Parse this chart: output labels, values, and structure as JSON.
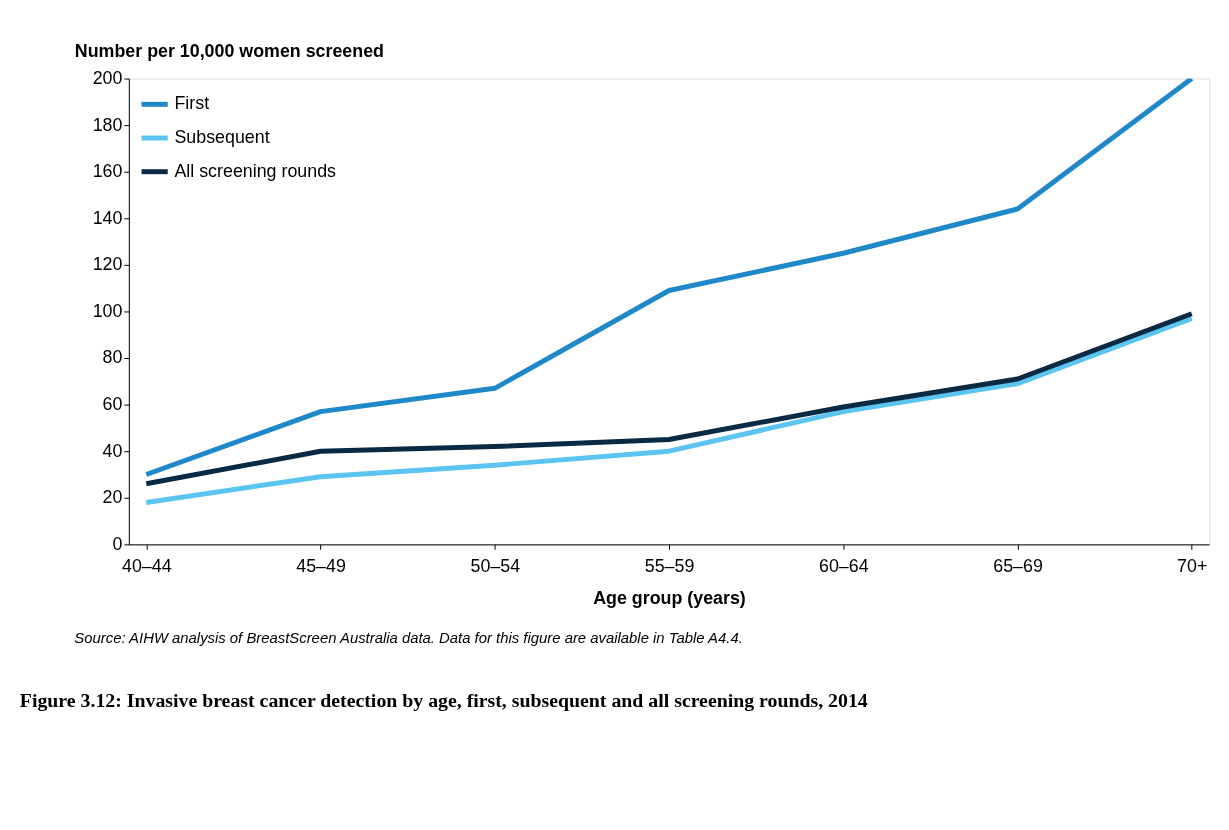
{
  "chart_data": {
    "type": "line",
    "title": "Figure 3.12: Invasive breast cancer detection by age, first, subsequent and all screening rounds, 2014",
    "xlabel": "Age group (years)",
    "ylabel": "Number per 10,000 women screened",
    "annotations": [
      "Source: AIHW analysis of BreastScreen Australia data. Data for this figure are available in Table A4.4."
    ],
    "categories": [
      "40–44",
      "45–49",
      "50–54",
      "55–59",
      "60–64",
      "65–69",
      "70+"
    ],
    "series": [
      {
        "name": "First",
        "color": "#1f88c9",
        "values": [
          30,
          57,
          67,
          109,
          125,
          144,
          200
        ]
      },
      {
        "name": "Subsequent",
        "color": "#5bc4f1",
        "values": [
          18,
          29,
          34,
          40,
          57,
          69,
          97
        ]
      },
      {
        "name": "All screening rounds",
        "color": "#0a2a44",
        "values": [
          26,
          40,
          42,
          45,
          59,
          71,
          99
        ]
      }
    ],
    "ylim": [
      0,
      200
    ],
    "yticks": [
      0,
      20,
      40,
      60,
      80,
      100,
      120,
      140,
      160,
      180,
      200
    ],
    "grid": false,
    "legend": "top left",
    "marker": "none",
    "line_style": "solid"
  }
}
